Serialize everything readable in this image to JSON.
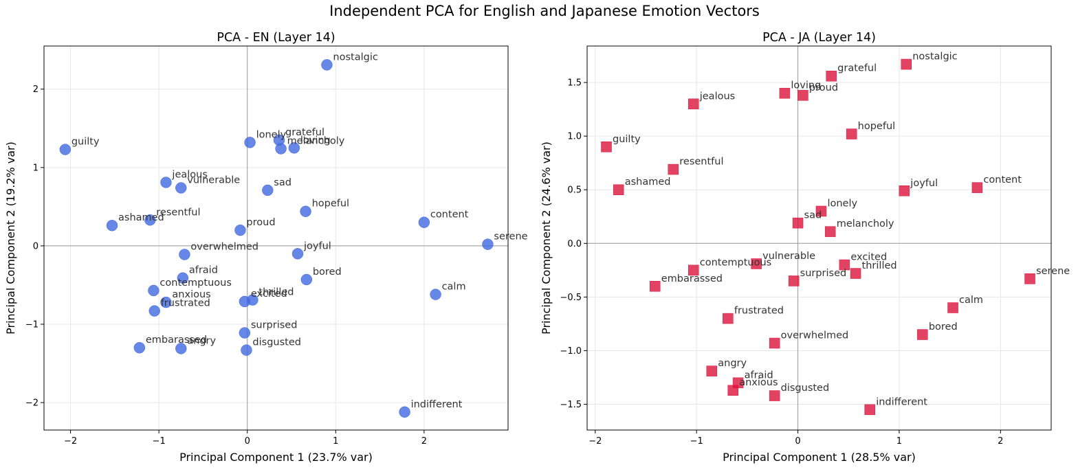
{
  "figure": {
    "suptitle": "Independent PCA for English and Japanese Emotion Vectors"
  },
  "chart_data": [
    {
      "type": "scatter",
      "title": "PCA - EN (Layer 14)",
      "xlabel": "Principal Component 1 (23.7% var)",
      "ylabel": "Principal Component 2 (19.2% var)",
      "xlim": [
        -2.3,
        2.95
      ],
      "ylim": [
        -2.35,
        2.55
      ],
      "xticks": [
        -2,
        -1,
        0,
        1,
        2
      ],
      "xtick_labels": [
        "−2",
        "−1",
        "0",
        "1",
        "2"
      ],
      "yticks": [
        -2,
        -1,
        0,
        1,
        2
      ],
      "ytick_labels": [
        "−2",
        "−1",
        "0",
        "1",
        "2"
      ],
      "grid": true,
      "marker": "circle",
      "color": "#4169E1",
      "points": [
        {
          "label": "nostalgic",
          "x": 0.9,
          "y": 2.31
        },
        {
          "label": "guilty",
          "x": -2.06,
          "y": 1.23
        },
        {
          "label": "lonely",
          "x": 0.03,
          "y": 1.32
        },
        {
          "label": "grateful",
          "x": 0.36,
          "y": 1.35
        },
        {
          "label": "loving",
          "x": 0.53,
          "y": 1.25
        },
        {
          "label": "melancholy",
          "x": 0.38,
          "y": 1.24
        },
        {
          "label": "jealous",
          "x": -0.92,
          "y": 0.81
        },
        {
          "label": "vulnerable",
          "x": -0.75,
          "y": 0.74
        },
        {
          "label": "sad",
          "x": 0.23,
          "y": 0.71
        },
        {
          "label": "hopeful",
          "x": 0.66,
          "y": 0.44
        },
        {
          "label": "ashamed",
          "x": -1.53,
          "y": 0.26
        },
        {
          "label": "resentful",
          "x": -1.1,
          "y": 0.33
        },
        {
          "label": "proud",
          "x": -0.08,
          "y": 0.2
        },
        {
          "label": "content",
          "x": 2.0,
          "y": 0.3
        },
        {
          "label": "serene",
          "x": 2.72,
          "y": 0.02
        },
        {
          "label": "overwhelmed",
          "x": -0.71,
          "y": -0.11
        },
        {
          "label": "joyful",
          "x": 0.57,
          "y": -0.1
        },
        {
          "label": "afraid",
          "x": -0.73,
          "y": -0.41
        },
        {
          "label": "bored",
          "x": 0.67,
          "y": -0.43
        },
        {
          "label": "contemptuous",
          "x": -1.06,
          "y": -0.57
        },
        {
          "label": "anxious",
          "x": -0.92,
          "y": -0.72
        },
        {
          "label": "frustrated",
          "x": -1.05,
          "y": -0.83
        },
        {
          "label": "thrilled",
          "x": 0.06,
          "y": -0.69
        },
        {
          "label": "excited",
          "x": -0.03,
          "y": -0.71
        },
        {
          "label": "calm",
          "x": 2.13,
          "y": -0.62
        },
        {
          "label": "surprised",
          "x": -0.03,
          "y": -1.11
        },
        {
          "label": "embarassed",
          "x": -1.22,
          "y": -1.3
        },
        {
          "label": "angry",
          "x": -0.75,
          "y": -1.31
        },
        {
          "label": "disgusted",
          "x": -0.01,
          "y": -1.33
        },
        {
          "label": "indifferent",
          "x": 1.78,
          "y": -2.12
        }
      ]
    },
    {
      "type": "scatter",
      "title": "PCA - JA (Layer 14)",
      "xlabel": "Principal Component 1 (28.5% var)",
      "ylabel": "Principal Component 2 (24.6% var)",
      "xlim": [
        -2.08,
        2.5
      ],
      "ylim": [
        -1.74,
        1.84
      ],
      "xticks": [
        -2,
        -1,
        0,
        1,
        2
      ],
      "xtick_labels": [
        "−2",
        "−1",
        "0",
        "1",
        "2"
      ],
      "yticks": [
        -1.5,
        -1.0,
        -0.5,
        0.0,
        0.5,
        1.0,
        1.5
      ],
      "ytick_labels": [
        "−1.5",
        "−1.0",
        "−0.5",
        "0.0",
        "0.5",
        "1.0",
        "1.5"
      ],
      "grid": true,
      "marker": "square",
      "color": "#DC143C",
      "points": [
        {
          "label": "nostalgic",
          "x": 1.07,
          "y": 1.67
        },
        {
          "label": "grateful",
          "x": 0.33,
          "y": 1.56
        },
        {
          "label": "loving",
          "x": -0.13,
          "y": 1.4
        },
        {
          "label": "proud",
          "x": 0.05,
          "y": 1.38
        },
        {
          "label": "jealous",
          "x": -1.03,
          "y": 1.3
        },
        {
          "label": "hopeful",
          "x": 0.53,
          "y": 1.02
        },
        {
          "label": "guilty",
          "x": -1.89,
          "y": 0.9
        },
        {
          "label": "resentful",
          "x": -1.23,
          "y": 0.69
        },
        {
          "label": "ashamed",
          "x": -1.77,
          "y": 0.5
        },
        {
          "label": "joyful",
          "x": 1.05,
          "y": 0.49
        },
        {
          "label": "content",
          "x": 1.77,
          "y": 0.52
        },
        {
          "label": "lonely",
          "x": 0.23,
          "y": 0.3
        },
        {
          "label": "sad",
          "x": 0.0,
          "y": 0.19
        },
        {
          "label": "melancholy",
          "x": 0.32,
          "y": 0.11
        },
        {
          "label": "vulnerable",
          "x": -0.41,
          "y": -0.19
        },
        {
          "label": "excited",
          "x": 0.46,
          "y": -0.2
        },
        {
          "label": "contemptuous",
          "x": -1.03,
          "y": -0.25
        },
        {
          "label": "thrilled",
          "x": 0.57,
          "y": -0.28
        },
        {
          "label": "surprised",
          "x": -0.04,
          "y": -0.35
        },
        {
          "label": "serene",
          "x": 2.29,
          "y": -0.33
        },
        {
          "label": "embarassed",
          "x": -1.41,
          "y": -0.4
        },
        {
          "label": "calm",
          "x": 1.53,
          "y": -0.6
        },
        {
          "label": "frustrated",
          "x": -0.69,
          "y": -0.7
        },
        {
          "label": "bored",
          "x": 1.23,
          "y": -0.85
        },
        {
          "label": "overwhelmed",
          "x": -0.23,
          "y": -0.93
        },
        {
          "label": "angry",
          "x": -0.85,
          "y": -1.19
        },
        {
          "label": "afraid",
          "x": -0.59,
          "y": -1.3
        },
        {
          "label": "anxious",
          "x": -0.64,
          "y": -1.37
        },
        {
          "label": "disgusted",
          "x": -0.23,
          "y": -1.42
        },
        {
          "label": "indifferent",
          "x": 0.71,
          "y": -1.55
        }
      ]
    }
  ]
}
